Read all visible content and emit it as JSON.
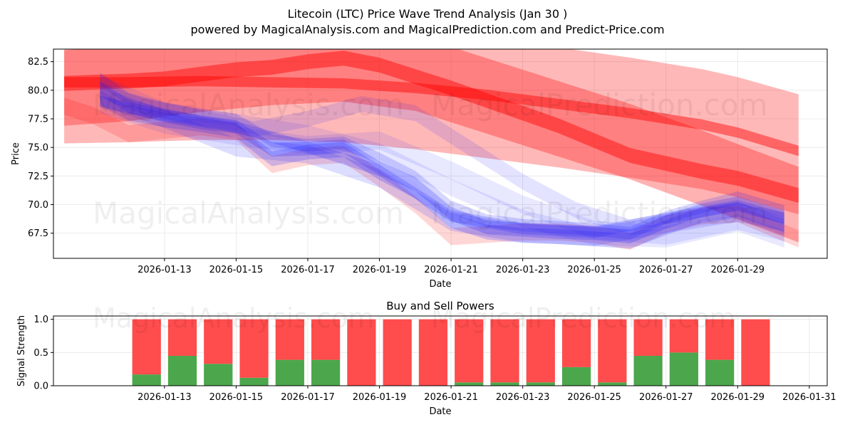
{
  "title_line1": "Litecoin (LTC) Price Wave Trend Analysis (Jan 30 )",
  "title_line2": "powered by MagicalAnalysis.com and MagicalPrediction.com and Predict-Price.com",
  "watermarks": [
    "MagicalAnalysis.com",
    "MagicalPrediction.com"
  ],
  "chart_data": [
    {
      "type": "area",
      "title": "",
      "xlabel": "Date",
      "ylabel": "Price",
      "x_tick_labels": [
        "2026-01-13",
        "2026-01-15",
        "2026-01-17",
        "2026-01-19",
        "2026-01-21",
        "2026-01-23",
        "2026-01-25",
        "2026-01-27",
        "2026-01-29"
      ],
      "y_tick_labels": [
        "67.5",
        "70.0",
        "72.5",
        "75.0",
        "77.5",
        "80.0",
        "82.5"
      ],
      "xlim_day": [
        9.9,
        31.5
      ],
      "ylim": [
        65.3,
        83.6
      ],
      "grid": true,
      "blue_series": [
        {
          "x": [
            11.2,
            12,
            13,
            14,
            15,
            16,
            17,
            18,
            19,
            20,
            21,
            22,
            23,
            24,
            25,
            26,
            27,
            28,
            29,
            30.3
          ],
          "y": [
            80.2,
            78.6,
            77.8,
            77.2,
            76.8,
            74.8,
            74.9,
            75.1,
            73.2,
            71.8,
            69.2,
            68.0,
            67.8,
            67.6,
            67.5,
            67.2,
            68.5,
            69.5,
            70.1,
            68.9
          ],
          "w": 1.2,
          "opacity": 0.22
        },
        {
          "x": [
            11.2,
            12,
            13,
            14,
            15,
            16,
            17,
            18,
            19,
            20,
            21,
            22,
            23,
            24,
            25,
            26,
            27,
            28,
            29,
            30.3
          ],
          "y": [
            79.3,
            78.0,
            77.4,
            77.0,
            76.5,
            74.0,
            74.6,
            74.8,
            72.8,
            71.2,
            68.6,
            67.6,
            67.3,
            67.2,
            67.0,
            66.8,
            68.0,
            69.1,
            69.6,
            68.2
          ],
          "w": 1.3,
          "opacity": 0.2
        },
        {
          "x": [
            11.2,
            12,
            13,
            14,
            15,
            16,
            17,
            18,
            19,
            20,
            21,
            22,
            23,
            24,
            25,
            26,
            27,
            28,
            29,
            30.3
          ],
          "y": [
            81.0,
            79.2,
            78.4,
            77.8,
            77.4,
            75.6,
            75.2,
            75.4,
            74.0,
            72.4,
            69.8,
            68.6,
            68.2,
            68.0,
            67.8,
            67.5,
            68.9,
            69.8,
            70.6,
            69.4
          ],
          "w": 1.1,
          "opacity": 0.18
        },
        {
          "x": [
            11.2,
            13,
            15,
            17,
            19,
            21,
            23,
            25,
            27,
            29,
            30.3
          ],
          "y": [
            79.5,
            77.5,
            75.0,
            74.4,
            72.3,
            68.5,
            67.5,
            67.2,
            68.3,
            69.3,
            68.5
          ],
          "w": 1.6,
          "opacity": 0.15
        },
        {
          "x": [
            11.2,
            13,
            15,
            17,
            19,
            21,
            23,
            25,
            27,
            29,
            30.3
          ],
          "y": [
            79.0,
            77.8,
            76.8,
            75.0,
            73.0,
            69.0,
            67.9,
            67.6,
            68.8,
            69.9,
            68.8
          ],
          "w": 1.0,
          "opacity": 0.2
        },
        {
          "x": [
            11.2,
            12.5,
            14,
            15.5,
            17,
            18.5,
            20,
            21.5,
            23,
            24.5,
            26,
            27.5,
            29,
            30.3
          ],
          "y": [
            80.0,
            78.5,
            77.6,
            76.6,
            77.5,
            78.8,
            78.0,
            75.0,
            72.0,
            69.5,
            68.0,
            68.8,
            69.5,
            68.0
          ],
          "w": 1.4,
          "opacity": 0.12
        },
        {
          "x": [
            11.2,
            13,
            15,
            17,
            19,
            21,
            23,
            25,
            27,
            29,
            30.3
          ],
          "y": [
            78.8,
            77.0,
            76.0,
            75.2,
            75.6,
            73.0,
            70.0,
            67.8,
            67.3,
            68.6,
            67.6
          ],
          "w": 1.6,
          "opacity": 0.1
        },
        {
          "x": [
            11.2,
            13,
            15,
            17,
            19,
            21,
            23,
            25,
            27,
            29,
            30.3
          ],
          "y": [
            80.6,
            78.2,
            77.2,
            76.2,
            74.6,
            71.5,
            68.8,
            67.2,
            67.0,
            68.4,
            67.0
          ],
          "w": 1.5,
          "opacity": 0.1
        }
      ],
      "red_series": [
        {
          "x": [
            10.2,
            12,
            14,
            16,
            18,
            20,
            22,
            24,
            26,
            28,
            29,
            30.7
          ],
          "y": [
            80.2,
            80.6,
            81.4,
            82.0,
            82.3,
            81.5,
            79.5,
            77.5,
            75.5,
            73.2,
            72.0,
            70.0
          ],
          "w": 6.6,
          "opacity": 0.3
        },
        {
          "x": [
            10.2,
            12,
            14,
            16,
            18,
            20,
            22,
            24,
            26,
            28,
            29,
            30.7
          ],
          "y": [
            80.6,
            80.7,
            80.9,
            80.9,
            80.7,
            80.1,
            79.3,
            78.5,
            77.6,
            76.6,
            75.9,
            74.4
          ],
          "w": 10.5,
          "opacity": 0.28
        },
        {
          "x": [
            10.2,
            11,
            12,
            13,
            14,
            15,
            16,
            17,
            18,
            19,
            20,
            21,
            22,
            23,
            24,
            25,
            26,
            27,
            28,
            29,
            30.7
          ],
          "y": [
            80.6,
            80.7,
            80.8,
            81.0,
            81.4,
            81.8,
            82.0,
            82.5,
            82.8,
            82.2,
            81.2,
            80.2,
            79.1,
            78.0,
            76.9,
            75.6,
            74.3,
            73.6,
            72.9,
            72.3,
            70.8
          ],
          "w": 1.3,
          "opacity": 0.45
        },
        {
          "x": [
            10.2,
            12,
            14,
            16,
            18,
            20,
            22,
            24,
            26,
            28,
            29,
            30.7
          ],
          "y": [
            80.7,
            80.7,
            80.8,
            80.7,
            80.6,
            80.2,
            79.6,
            78.8,
            78.0,
            77.0,
            76.3,
            74.7
          ],
          "w": 0.9,
          "opacity": 0.45
        },
        {
          "x": [
            10.2,
            11,
            12,
            13,
            14,
            15,
            16,
            17,
            18,
            19,
            20,
            21,
            22,
            23,
            24,
            25,
            26,
            27,
            28,
            29,
            30.7
          ],
          "y": [
            78.6,
            77.8,
            76.2,
            76.5,
            76.8,
            76.4,
            73.5,
            74.2,
            74.4,
            72.3,
            70.0,
            67.2,
            67.4,
            67.6,
            67.6,
            67.4,
            66.8,
            68.3,
            69.0,
            69.2,
            67.0
          ],
          "w": 1.5,
          "opacity": 0.16
        }
      ]
    },
    {
      "type": "bar",
      "title": "Buy and Sell Powers",
      "xlabel": "Date",
      "ylabel": "Signal Strength",
      "x_tick_labels": [
        "2026-01-13",
        "2026-01-15",
        "2026-01-17",
        "2026-01-19",
        "2026-01-21",
        "2026-01-23",
        "2026-01-25",
        "2026-01-27",
        "2026-01-29",
        "2026-01-31"
      ],
      "y_tick_labels": [
        "0.0",
        "0.5",
        "1.0"
      ],
      "ylim": [
        0,
        1.05
      ],
      "categories": [
        "2026-01-12",
        "2026-01-13",
        "2026-01-14",
        "2026-01-15",
        "2026-01-16",
        "2026-01-17",
        "2026-01-18",
        "2026-01-19",
        "2026-01-20",
        "2026-01-21",
        "2026-01-22",
        "2026-01-23",
        "2026-01-24",
        "2026-01-25",
        "2026-01-26",
        "2026-01-27",
        "2026-01-28",
        "2026-01-29"
      ],
      "bar_days": [
        12.5,
        13.5,
        14.5,
        15.5,
        16.5,
        17.5,
        18.5,
        19.5,
        20.5,
        21.5,
        22.5,
        23.5,
        24.5,
        25.5,
        26.5,
        27.5,
        28.5,
        29.5
      ],
      "series": [
        {
          "name": "Buy",
          "color": "#4ca64c",
          "values": [
            0.17,
            0.45,
            0.33,
            0.12,
            0.39,
            0.39,
            0.0,
            0.0,
            0.0,
            0.05,
            0.05,
            0.05,
            0.28,
            0.05,
            0.45,
            0.5,
            0.39,
            0.0
          ]
        },
        {
          "name": "Sell",
          "color": "#ff4c4c",
          "values": [
            0.83,
            0.55,
            0.67,
            0.88,
            0.61,
            0.61,
            1.0,
            1.0,
            1.0,
            0.95,
            0.95,
            0.95,
            0.72,
            0.95,
            0.55,
            0.5,
            0.61,
            1.0
          ]
        }
      ]
    }
  ]
}
